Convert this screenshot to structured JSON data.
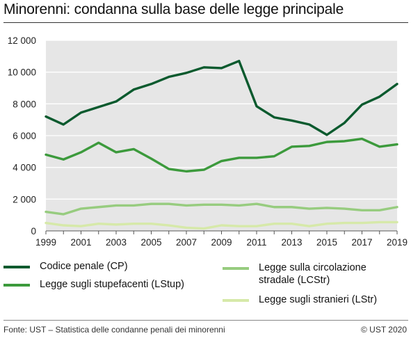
{
  "title": "Minorenni: condanna sulla base delle legge principale",
  "source": "Fonte: UST – Statistica delle condanne penali dei minorenni",
  "copyright": "© UST 2020",
  "chart_data": {
    "type": "line",
    "title": "Minorenni: condanna sulla base delle legge principale",
    "xlabel": "",
    "ylabel": "",
    "x": [
      1999,
      2000,
      2001,
      2002,
      2003,
      2004,
      2005,
      2006,
      2007,
      2008,
      2009,
      2010,
      2011,
      2012,
      2013,
      2014,
      2015,
      2016,
      2017,
      2018,
      2019
    ],
    "x_ticks": [
      "1999",
      "2001",
      "2003",
      "2005",
      "2007",
      "2009",
      "2011",
      "2013",
      "2015",
      "2017",
      "2019"
    ],
    "y_ticks": [
      "0",
      "2 000",
      "4 000",
      "6 000",
      "8 000",
      "10 000",
      "12 000"
    ],
    "xlim": [
      1999,
      2019
    ],
    "ylim": [
      0,
      12000
    ],
    "grid": true,
    "legend_position": "bottom",
    "series": [
      {
        "name": "Codice penale (CP)",
        "color": "#0b5a2e",
        "values": [
          7200,
          6700,
          7450,
          7800,
          8150,
          8900,
          9250,
          9700,
          9950,
          10300,
          10250,
          10700,
          7850,
          7150,
          6950,
          6700,
          6050,
          6800,
          7950,
          8450,
          9250
        ]
      },
      {
        "name": "Legge sugli stupefacenti (LStup)",
        "color": "#3c9a3c",
        "values": [
          4800,
          4500,
          4950,
          5550,
          4950,
          5150,
          4550,
          3900,
          3750,
          3850,
          4400,
          4600,
          4600,
          4700,
          5300,
          5350,
          5600,
          5650,
          5800,
          5300,
          5450
        ]
      },
      {
        "name": "Legge sulla circolazione stradale (LCStr)",
        "color": "#97cc7f",
        "values": [
          1200,
          1050,
          1400,
          1500,
          1600,
          1600,
          1700,
          1700,
          1600,
          1650,
          1650,
          1600,
          1700,
          1500,
          1500,
          1400,
          1450,
          1400,
          1300,
          1300,
          1500
        ]
      },
      {
        "name": "Legge sugli stranieri (LStr)",
        "color": "#d6e9a9",
        "values": [
          500,
          350,
          300,
          450,
          400,
          450,
          450,
          350,
          200,
          150,
          350,
          300,
          300,
          450,
          450,
          300,
          450,
          500,
          500,
          550,
          550
        ]
      }
    ]
  },
  "legend": {
    "items": [
      {
        "label": "Codice penale (CP)",
        "color": "#0b5a2e"
      },
      {
        "label": "Legge sugli stupefacenti (LStup)",
        "color": "#3c9a3c"
      },
      {
        "label": "Legge sulla circolazione stradale (LCStr)",
        "color": "#97cc7f"
      },
      {
        "label": "Legge sugli stranieri (LStr)",
        "color": "#d6e9a9"
      }
    ]
  }
}
